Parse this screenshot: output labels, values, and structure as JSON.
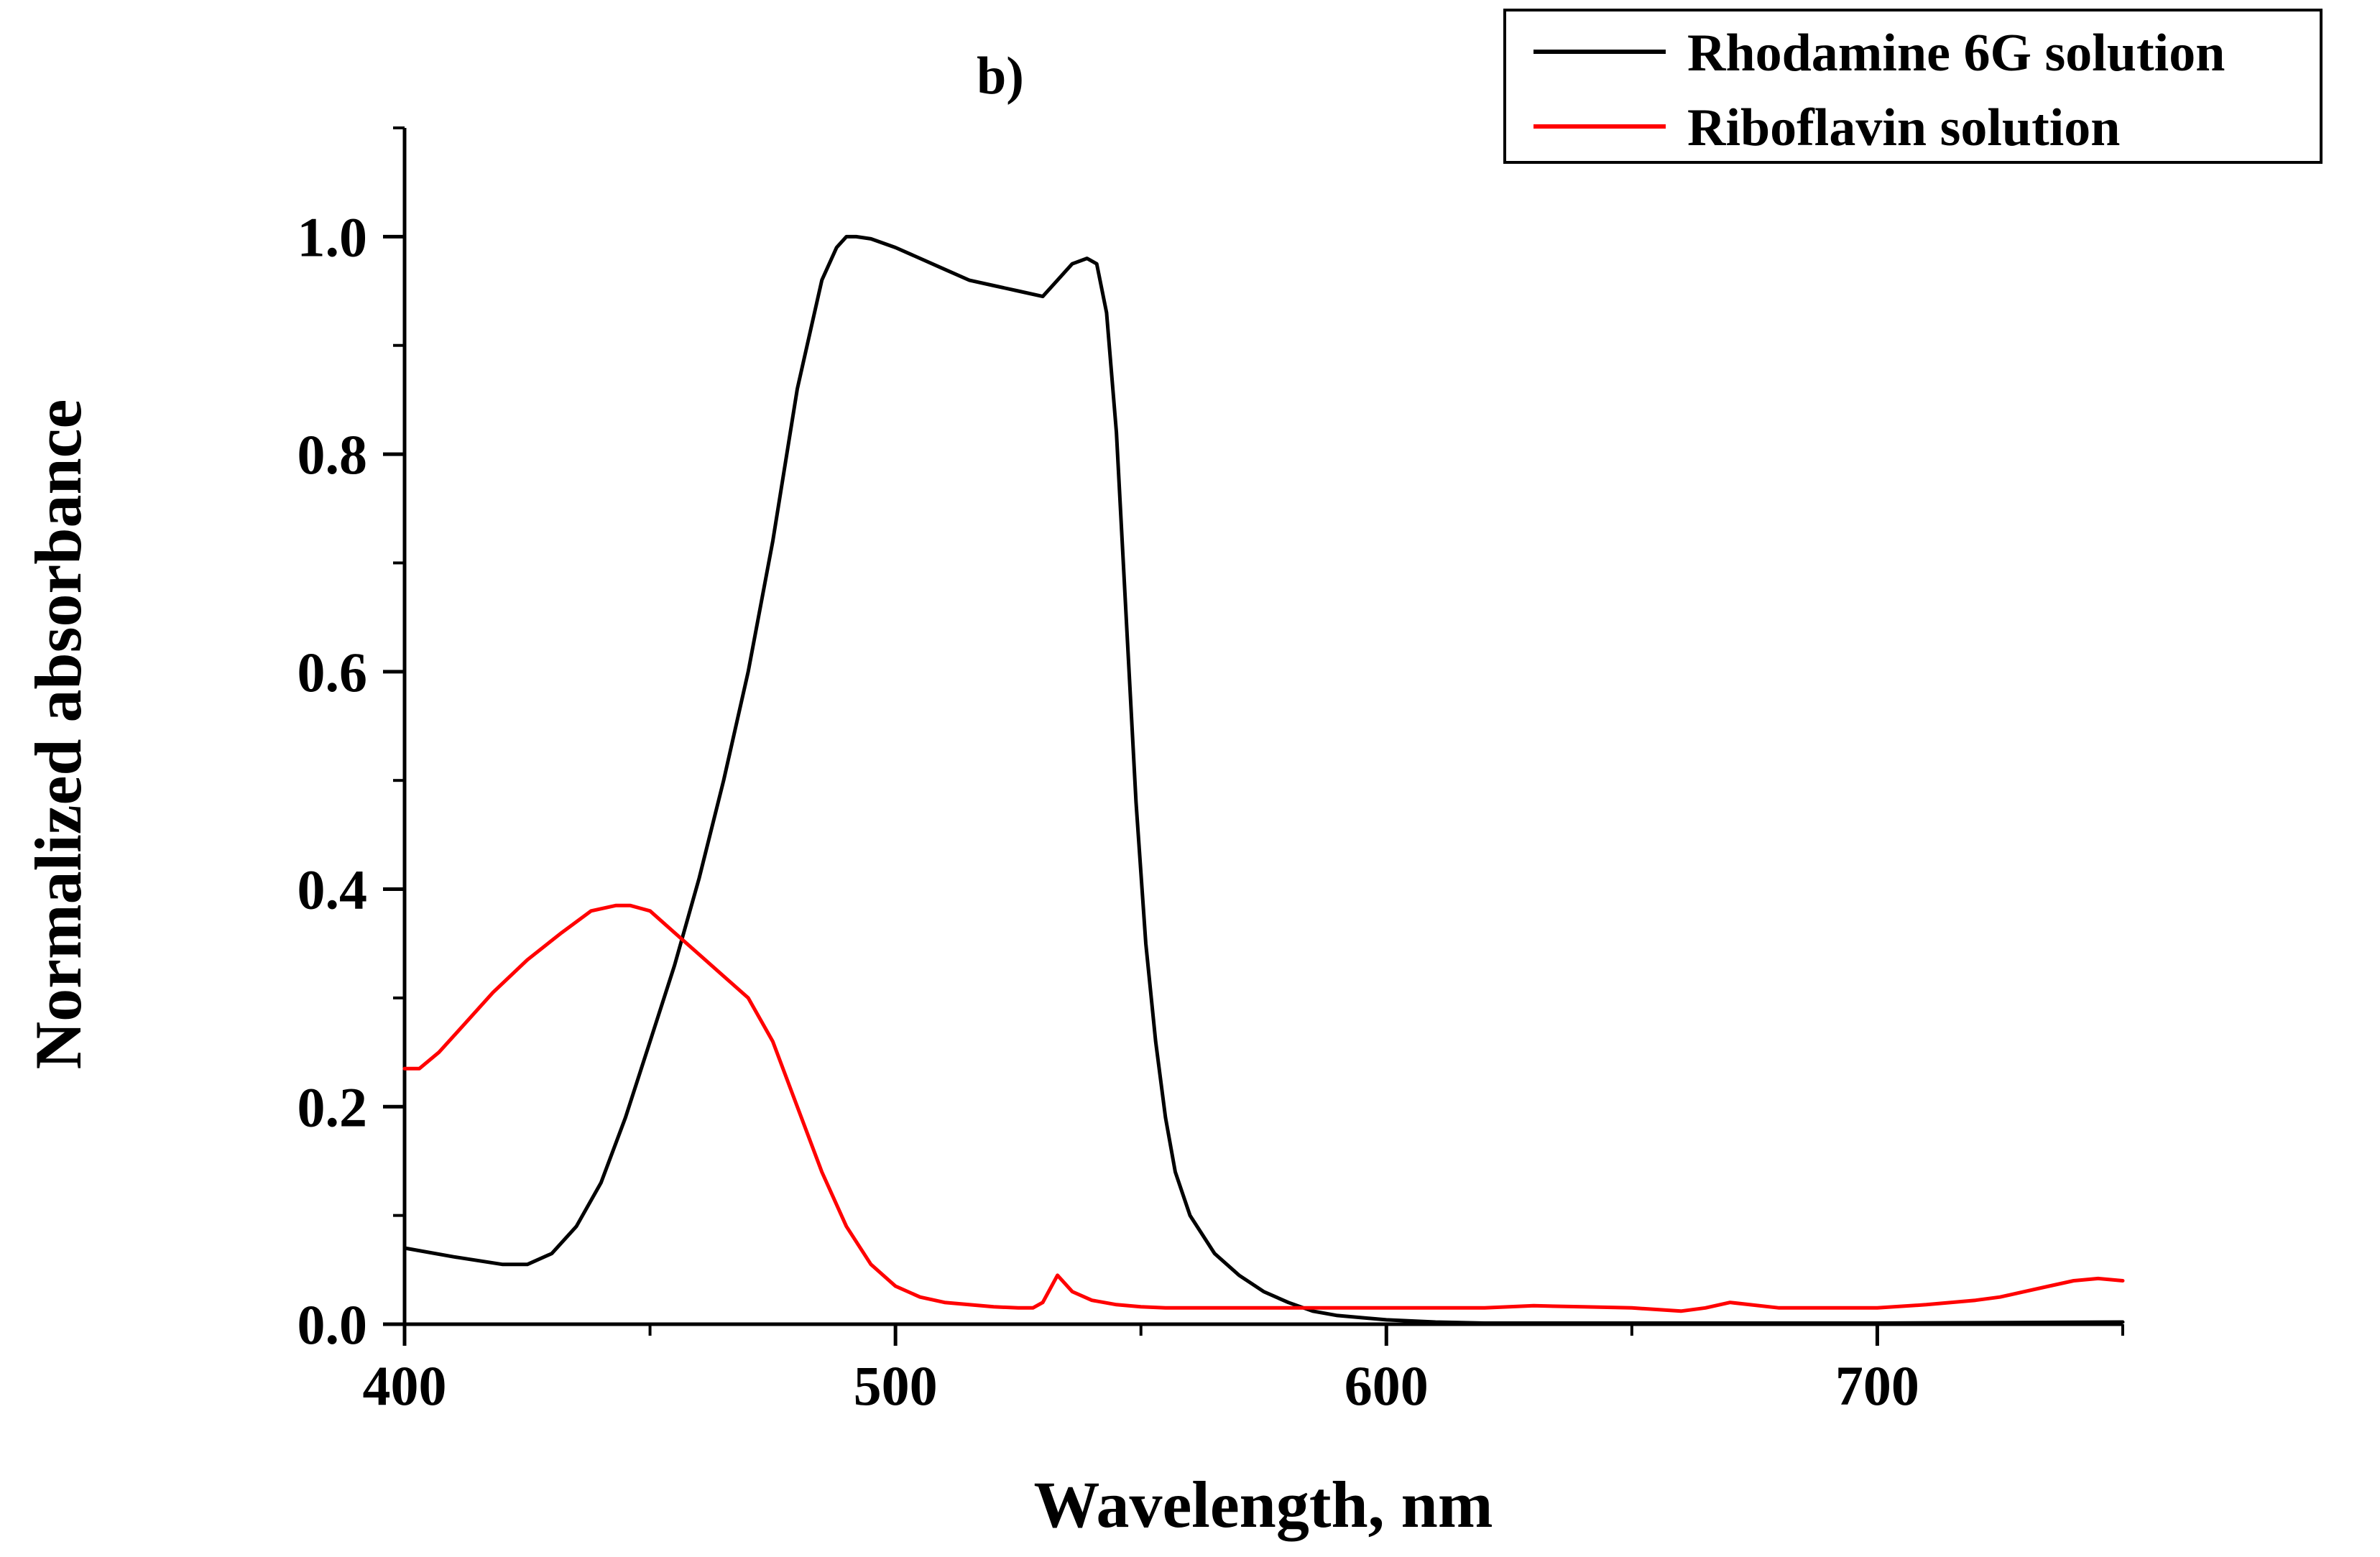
{
  "chart_data": {
    "type": "line",
    "title": "b)",
    "xlabel": "Wavelength, nm",
    "ylabel": "Normalized absorbance",
    "xlim": [
      400,
      750
    ],
    "ylim": [
      0.0,
      1.1
    ],
    "xticks": [
      400,
      500,
      600,
      700
    ],
    "xtick_labels": [
      "400",
      "500",
      "600",
      "700"
    ],
    "yticks": [
      0.0,
      0.2,
      0.4,
      0.6,
      0.8,
      1.0
    ],
    "ytick_labels": [
      "0.0",
      "0.2",
      "0.4",
      "0.6",
      "0.8",
      "1.0"
    ],
    "grid": false,
    "legend_position": "top-right",
    "series": [
      {
        "name": "Rhodamine 6G solution",
        "color": "#000000",
        "x": [
          400,
          410,
          420,
          425,
          430,
          435,
          440,
          445,
          450,
          455,
          460,
          465,
          470,
          475,
          480,
          485,
          488,
          490,
          492,
          495,
          500,
          505,
          510,
          515,
          520,
          525,
          530,
          533,
          536,
          539,
          541,
          543,
          545,
          547,
          549,
          551,
          553,
          555,
          557,
          560,
          565,
          570,
          575,
          580,
          585,
          590,
          600,
          610,
          620,
          650,
          700,
          750
        ],
        "y": [
          0.07,
          0.062,
          0.055,
          0.055,
          0.065,
          0.09,
          0.13,
          0.19,
          0.26,
          0.33,
          0.41,
          0.5,
          0.6,
          0.72,
          0.86,
          0.96,
          0.99,
          1.0,
          1.0,
          0.998,
          0.99,
          0.98,
          0.97,
          0.96,
          0.955,
          0.95,
          0.945,
          0.96,
          0.975,
          0.98,
          0.975,
          0.93,
          0.82,
          0.65,
          0.48,
          0.35,
          0.26,
          0.19,
          0.14,
          0.1,
          0.065,
          0.045,
          0.03,
          0.02,
          0.012,
          0.008,
          0.004,
          0.002,
          0.001,
          0.001,
          0.001,
          0.002
        ]
      },
      {
        "name": "Riboflavin solution",
        "color": "#ff0000",
        "x": [
          400,
          403,
          407,
          412,
          418,
          425,
          432,
          438,
          443,
          446,
          450,
          455,
          460,
          465,
          470,
          475,
          480,
          485,
          490,
          495,
          500,
          505,
          510,
          515,
          520,
          525,
          528,
          530,
          533,
          536,
          540,
          545,
          550,
          555,
          560,
          570,
          580,
          590,
          600,
          610,
          620,
          625,
          630,
          640,
          650,
          660,
          665,
          670,
          680,
          690,
          700,
          710,
          715,
          720,
          725,
          730,
          735,
          740,
          745,
          750
        ],
        "y": [
          0.235,
          0.235,
          0.25,
          0.275,
          0.305,
          0.335,
          0.36,
          0.38,
          0.385,
          0.385,
          0.38,
          0.36,
          0.34,
          0.32,
          0.3,
          0.26,
          0.2,
          0.14,
          0.09,
          0.055,
          0.035,
          0.025,
          0.02,
          0.018,
          0.016,
          0.015,
          0.015,
          0.02,
          0.045,
          0.03,
          0.022,
          0.018,
          0.016,
          0.015,
          0.015,
          0.015,
          0.015,
          0.015,
          0.015,
          0.015,
          0.015,
          0.016,
          0.017,
          0.016,
          0.015,
          0.012,
          0.015,
          0.02,
          0.015,
          0.015,
          0.015,
          0.018,
          0.02,
          0.022,
          0.025,
          0.03,
          0.035,
          0.04,
          0.042,
          0.04
        ]
      }
    ]
  }
}
